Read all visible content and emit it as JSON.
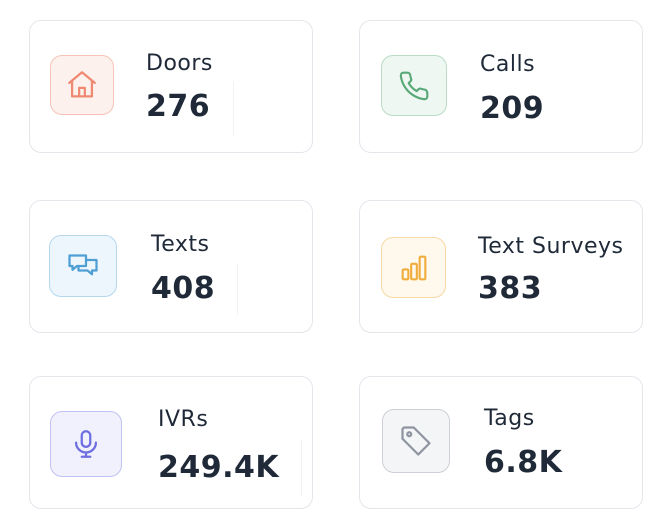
{
  "stats": [
    {
      "label": "Doors",
      "value": "276",
      "icon": "home-icon",
      "color": "#ef8a72",
      "bg": "#fdf1ee",
      "border": "#f6c3b6"
    },
    {
      "label": "Calls",
      "value": "209",
      "icon": "phone-icon",
      "color": "#58a878",
      "bg": "#eef7f1",
      "border": "#b9dcc6"
    },
    {
      "label": "Texts",
      "value": "408",
      "icon": "chat-icon",
      "color": "#4f9fd4",
      "bg": "#edf6fc",
      "border": "#b4d7ee"
    },
    {
      "label": "Text Surveys",
      "value": "383",
      "icon": "bar-chart-icon",
      "color": "#f0ad3e",
      "bg": "#fff8ec",
      "border": "#f6d9a4"
    },
    {
      "label": "IVRs",
      "value": "249.4K",
      "icon": "microphone-icon",
      "color": "#6d6fe0",
      "bg": "#f1f1fd",
      "border": "#c0c1f2"
    },
    {
      "label": "Tags",
      "value": "6.8K",
      "icon": "tag-icon",
      "color": "#8e95a1",
      "bg": "#f4f5f7",
      "border": "#cdd0d6"
    }
  ]
}
